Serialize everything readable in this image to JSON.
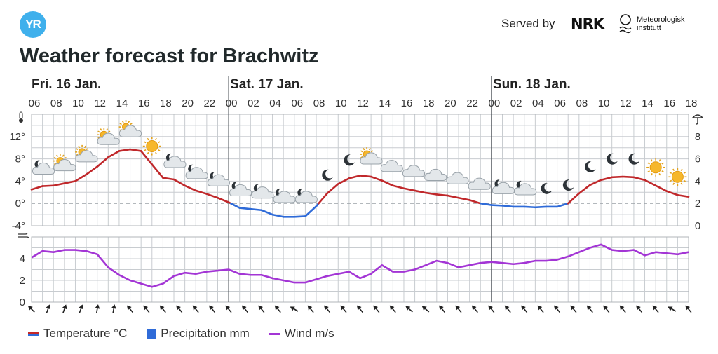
{
  "header": {
    "logo_text": "YR",
    "served_by": "Served by",
    "nrk": "NRK",
    "met_line1": "Meteorologisk",
    "met_line2": "institutt",
    "title": "Weather forecast for Brachwitz"
  },
  "legend": {
    "temperature": "Temperature °C",
    "precipitation": "Precipitation mm",
    "wind": "Wind m/s"
  },
  "colors": {
    "temp_warm": "#c0282b",
    "temp_cold": "#2f6bd8",
    "wind": "#a335d5",
    "grid": "#c8ccd0",
    "day_divider": "#4a4f55"
  },
  "chart_data": {
    "type": "line",
    "days": [
      {
        "label": "Fri. 16 Jan.",
        "start_hour": "06"
      },
      {
        "label": "Sat. 17 Jan.",
        "start_hour": "00"
      },
      {
        "label": "Sun. 18 Jan.",
        "start_hour": "00"
      }
    ],
    "hour_labels": [
      "06",
      "08",
      "10",
      "12",
      "14",
      "16",
      "18",
      "20",
      "22",
      "00",
      "02",
      "04",
      "06",
      "08",
      "10",
      "12",
      "14",
      "16",
      "18",
      "20",
      "22",
      "00",
      "02",
      "04",
      "06",
      "08",
      "10",
      "12",
      "14",
      "16",
      "18"
    ],
    "temperature_axis": {
      "ticks": [
        "12°",
        "8°",
        "4°",
        "0°",
        "-4°"
      ],
      "values": [
        12,
        8,
        4,
        0,
        -4
      ],
      "ylim": [
        -4,
        16
      ]
    },
    "precipitation_axis": {
      "ticks": [
        "8",
        "6",
        "4",
        "2",
        "0"
      ],
      "values": [
        8,
        6,
        4,
        2,
        0
      ],
      "ylim": [
        0,
        10
      ]
    },
    "wind_axis": {
      "ticks": [
        "4",
        "2",
        "0"
      ],
      "values": [
        4,
        2,
        0
      ],
      "ylim": [
        0,
        6
      ]
    },
    "hours_since_start": [
      0,
      1,
      2,
      3,
      4,
      5,
      6,
      7,
      8,
      9,
      10,
      11,
      12,
      13,
      14,
      15,
      16,
      17,
      18,
      19,
      20,
      21,
      22,
      23,
      24,
      25,
      26,
      27,
      28,
      29,
      30,
      31,
      32,
      33,
      34,
      35,
      36,
      37,
      38,
      39,
      40,
      41,
      42,
      43,
      44,
      45,
      46,
      47,
      48,
      49,
      50,
      51,
      52,
      53,
      54,
      55,
      56,
      57,
      58,
      59,
      60
    ],
    "temperature": [
      2.5,
      3.1,
      3.2,
      3.6,
      4.0,
      5.2,
      6.6,
      8.3,
      9.4,
      9.7,
      9.4,
      7.0,
      4.6,
      4.3,
      3.2,
      2.3,
      1.7,
      1.0,
      0.2,
      -0.8,
      -1.0,
      -1.2,
      -2.0,
      -2.4,
      -2.4,
      -2.3,
      -0.5,
      1.8,
      3.5,
      4.5,
      5.0,
      4.8,
      4.1,
      3.2,
      2.7,
      2.3,
      1.9,
      1.6,
      1.4,
      1.0,
      0.6,
      0.0,
      -0.3,
      -0.4,
      -0.6,
      -0.6,
      -0.7,
      -0.6,
      -0.6,
      0.0,
      1.8,
      3.3,
      4.2,
      4.7,
      4.8,
      4.7,
      4.2,
      3.2,
      2.2,
      1.5,
      1.2
    ],
    "wind": [
      4.1,
      4.7,
      4.6,
      4.8,
      4.8,
      4.7,
      4.4,
      3.2,
      2.5,
      2.0,
      1.7,
      1.4,
      1.7,
      2.4,
      2.7,
      2.6,
      2.8,
      2.9,
      3.0,
      2.6,
      2.5,
      2.5,
      2.2,
      2.0,
      1.8,
      1.8,
      2.1,
      2.4,
      2.6,
      2.8,
      2.2,
      2.6,
      3.4,
      2.8,
      2.8,
      3.0,
      3.4,
      3.8,
      3.6,
      3.2,
      3.4,
      3.6,
      3.7,
      3.6,
      3.5,
      3.6,
      3.8,
      3.8,
      3.9,
      4.2,
      4.6,
      5.0,
      5.3,
      4.8,
      4.7,
      4.8,
      4.3,
      4.6,
      4.5,
      4.4,
      4.6
    ],
    "symbols": [
      "cloudy-night",
      "partly-cloudy-day",
      "partly-cloudy-day",
      "partly-cloudy-day",
      "partly-cloudy-day",
      "sun",
      "cloudy-night",
      "cloudy-night",
      "cloudy-night",
      "cloudy-night",
      "cloudy-night",
      "cloudy-night",
      "cloudy-night",
      "moon",
      "moon",
      "partly-cloudy-day",
      "cloud",
      "cloud",
      "cloud",
      "cloud",
      "cloud",
      "cloudy-night",
      "cloudy-night",
      "moon",
      "moon",
      "moon",
      "moon",
      "moon",
      "sun",
      "sun",
      "sun",
      "sun",
      "moon"
    ],
    "wind_direction_deg": [
      315,
      20,
      20,
      20,
      10,
      10,
      320,
      320,
      320,
      320,
      320,
      320,
      320,
      320,
      320,
      320,
      300,
      320,
      320,
      320,
      320,
      320,
      320,
      310,
      310,
      320,
      320,
      320,
      320,
      320,
      320,
      320,
      320,
      320,
      320,
      320,
      320,
      320,
      320,
      300,
      320
    ]
  }
}
